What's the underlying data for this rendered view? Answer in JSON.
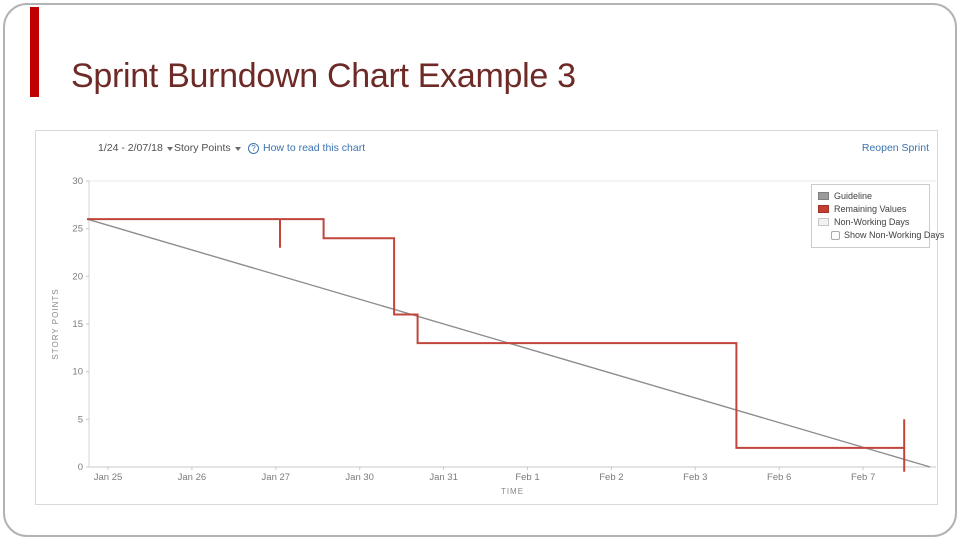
{
  "slide": {
    "title": "Sprint Burndown Chart Example 3"
  },
  "toolbar": {
    "date_range": "1/24 - 2/07/18",
    "metric": "Story Points",
    "help_link": "How to read this chart",
    "reopen_link": "Reopen Sprint"
  },
  "legend": {
    "items": [
      {
        "label": "Guideline",
        "color": "#9b9b9b"
      },
      {
        "label": "Remaining Values",
        "color": "#c43d30"
      },
      {
        "label": "Non-Working Days",
        "color": "#f2f2f2"
      }
    ],
    "checkbox_label": "Show Non-Working Days",
    "checkbox_checked": false
  },
  "colors": {
    "accent_bar": "#c00000",
    "title_text": "#6e2a26",
    "link_blue": "#3b73af",
    "remaining_line": "#c0463c",
    "guideline": "#8e8e8e"
  },
  "chart_data": {
    "type": "line",
    "title": "",
    "xlabel": "TIME",
    "ylabel": "STORY POINTS",
    "categories": [
      "Jan 25",
      "Jan 26",
      "Jan 27",
      "Jan 30",
      "Jan 31",
      "Feb 1",
      "Feb 2",
      "Feb 3",
      "Feb 6",
      "Feb 7"
    ],
    "y_ticks": [
      0,
      5,
      10,
      15,
      20,
      25,
      30
    ],
    "ylim": [
      0,
      30
    ],
    "grid": "top-line-only",
    "legend_position": "top-right",
    "series": [
      {
        "name": "Guideline",
        "color": "#8e8e8e",
        "width": 1.4,
        "points": [
          [
            -0.25,
            26
          ],
          [
            9.8,
            0
          ]
        ]
      },
      {
        "name": "Remaining Values",
        "color": "#c0463c",
        "width": 2,
        "points": [
          [
            -0.25,
            26
          ],
          [
            2.05,
            26
          ],
          [
            2.05,
            23
          ],
          [
            2.05,
            26
          ],
          [
            2.57,
            26
          ],
          [
            2.57,
            24
          ],
          [
            3.41,
            24
          ],
          [
            3.41,
            16
          ],
          [
            3.69,
            16
          ],
          [
            3.69,
            13
          ],
          [
            7.49,
            13
          ],
          [
            7.49,
            2
          ],
          [
            9.49,
            2
          ],
          [
            9.49,
            5
          ],
          [
            9.49,
            -0.5
          ]
        ]
      }
    ]
  }
}
